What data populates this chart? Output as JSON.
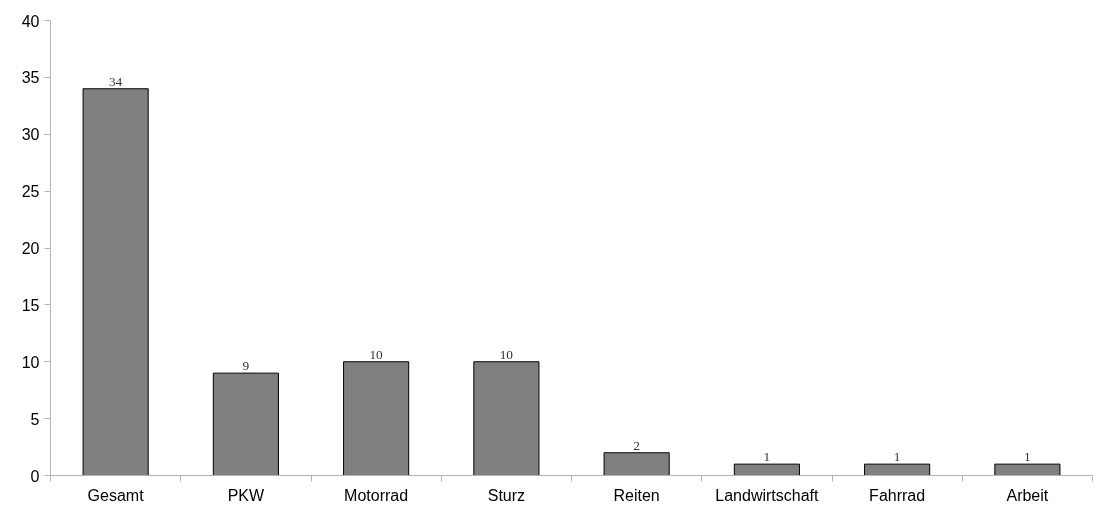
{
  "chart_data": {
    "type": "bar",
    "categories": [
      "Gesamt",
      "PKW",
      "Motorrad",
      "Sturz",
      "Reiten",
      "Landwirtschaft",
      "Fahrrad",
      "Arbeit"
    ],
    "values": [
      34,
      9,
      10,
      10,
      2,
      1,
      1,
      1
    ],
    "color": "#808080",
    "ylim": [
      0,
      40
    ],
    "yticks": [
      0,
      5,
      10,
      15,
      20,
      25,
      30,
      35,
      40
    ],
    "grid": false,
    "data_labels": true
  }
}
